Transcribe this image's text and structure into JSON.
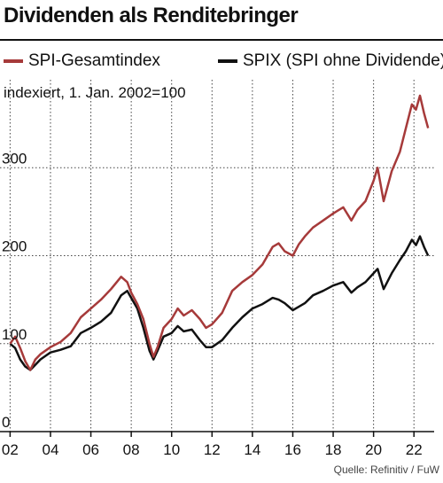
{
  "title": "Dividenden als Renditebringer",
  "source": "Quelle: Refinitiv / FuW",
  "colors": {
    "spi": "#a63a3a",
    "spix": "#111111",
    "grid": "#444444",
    "background": "#ffffff"
  },
  "chart_data": {
    "type": "line",
    "title": "Dividenden als Renditebringer",
    "ylabel": "indexiert, 1. Jan. 2002=100",
    "xlabel": "",
    "xlim": [
      2001.5,
      2023.0
    ],
    "ylim": [
      0,
      400
    ],
    "x_ticks": [
      2002,
      2004,
      2006,
      2008,
      2010,
      2012,
      2014,
      2016,
      2018,
      2020,
      2022
    ],
    "x_tick_labels": [
      "02",
      "04",
      "06",
      "08",
      "10",
      "12",
      "14",
      "16",
      "18",
      "20",
      "22"
    ],
    "y_ticks": [
      0,
      100,
      200,
      300
    ],
    "y_tick_labels": [
      "0",
      "100",
      "200",
      "300"
    ],
    "grid": "vertical dotted + horizontal dotted",
    "legend_position": "top",
    "series": [
      {
        "name": "SPI-Gesamtindex",
        "color": "#a63a3a",
        "x": [
          2002.0,
          2002.25,
          2002.5,
          2002.75,
          2003.0,
          2003.25,
          2003.5,
          2003.75,
          2004.0,
          2004.5,
          2005.0,
          2005.5,
          2006.0,
          2006.5,
          2007.0,
          2007.5,
          2007.8,
          2008.0,
          2008.3,
          2008.6,
          2008.9,
          2009.1,
          2009.3,
          2009.6,
          2010.0,
          2010.3,
          2010.6,
          2011.0,
          2011.4,
          2011.7,
          2012.0,
          2012.5,
          2013.0,
          2013.5,
          2014.0,
          2014.5,
          2015.0,
          2015.3,
          2015.6,
          2016.0,
          2016.3,
          2016.6,
          2017.0,
          2017.5,
          2018.0,
          2018.5,
          2018.9,
          2019.2,
          2019.6,
          2020.0,
          2020.2,
          2020.5,
          2020.9,
          2021.3,
          2021.6,
          2021.9,
          2022.1,
          2022.3,
          2022.5,
          2022.7
        ],
        "values": [
          100,
          108,
          95,
          80,
          70,
          82,
          88,
          92,
          96,
          102,
          112,
          130,
          140,
          150,
          162,
          176,
          170,
          158,
          145,
          128,
          100,
          85,
          96,
          118,
          128,
          140,
          132,
          138,
          128,
          118,
          122,
          135,
          160,
          170,
          178,
          190,
          210,
          214,
          205,
          200,
          213,
          222,
          232,
          240,
          248,
          255,
          240,
          252,
          262,
          285,
          300,
          262,
          296,
          318,
          345,
          372,
          366,
          382,
          362,
          345
        ]
      },
      {
        "name": "SPIX (SPI ohne Dividende)",
        "color": "#111111",
        "x": [
          2002.0,
          2002.25,
          2002.5,
          2002.75,
          2003.0,
          2003.25,
          2003.5,
          2003.75,
          2004.0,
          2004.5,
          2005.0,
          2005.5,
          2006.0,
          2006.5,
          2007.0,
          2007.5,
          2007.8,
          2008.0,
          2008.3,
          2008.6,
          2008.9,
          2009.1,
          2009.3,
          2009.6,
          2010.0,
          2010.3,
          2010.6,
          2011.0,
          2011.4,
          2011.7,
          2012.0,
          2012.5,
          2013.0,
          2013.5,
          2014.0,
          2014.5,
          2015.0,
          2015.3,
          2015.6,
          2016.0,
          2016.3,
          2016.6,
          2017.0,
          2017.5,
          2018.0,
          2018.5,
          2018.9,
          2019.2,
          2019.6,
          2020.0,
          2020.2,
          2020.5,
          2020.9,
          2021.3,
          2021.6,
          2021.9,
          2022.1,
          2022.3,
          2022.5,
          2022.7
        ],
        "values": [
          100,
          95,
          82,
          74,
          70,
          76,
          82,
          86,
          90,
          93,
          97,
          112,
          118,
          125,
          135,
          155,
          160,
          152,
          140,
          118,
          92,
          82,
          92,
          108,
          112,
          120,
          114,
          116,
          104,
          96,
          96,
          104,
          118,
          130,
          140,
          145,
          152,
          150,
          146,
          138,
          142,
          146,
          155,
          160,
          166,
          170,
          158,
          164,
          170,
          180,
          185,
          162,
          180,
          195,
          205,
          218,
          212,
          222,
          210,
          200
        ]
      }
    ]
  }
}
